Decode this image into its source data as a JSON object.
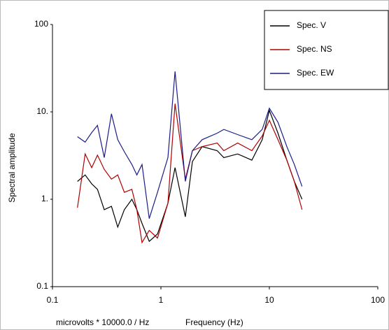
{
  "chart_data": {
    "type": "line",
    "y_label": "Spectral amplitude",
    "x_label": "Frequency (Hz)",
    "units_note": "microvolts * 10000.0 / Hz",
    "xscale": "log",
    "yscale": "log",
    "xlim": [
      0.1,
      100
    ],
    "ylim": [
      0.1,
      100
    ],
    "xticks": [
      0.1,
      1,
      10,
      100
    ],
    "yticks": [
      {
        "value": 0.1,
        "label": "0.1"
      },
      {
        "value": 1,
        "label": "1."
      },
      {
        "value": 10,
        "label": "10."
      },
      {
        "value": 100,
        "label": "100"
      }
    ],
    "grid": false,
    "legend": "upper right",
    "x": [
      0.17,
      0.2,
      0.23,
      0.26,
      0.3,
      0.35,
      0.4,
      0.46,
      0.54,
      0.6,
      0.67,
      0.78,
      0.93,
      1.16,
      1.35,
      1.68,
      1.95,
      2.4,
      3.3,
      3.8,
      5.1,
      6.9,
      8.6,
      10,
      12,
      14.5,
      17,
      20
    ],
    "series": [
      {
        "name": "Spec. V",
        "color": "#000000",
        "values": [
          1.6,
          1.9,
          1.5,
          1.3,
          0.76,
          0.83,
          0.48,
          0.76,
          1.0,
          0.76,
          0.53,
          0.33,
          0.4,
          0.9,
          2.3,
          0.63,
          2.7,
          4,
          3.6,
          3,
          3.3,
          2.8,
          4.8,
          10.4,
          5.7,
          2.8,
          1.6,
          1
        ]
      },
      {
        "name": "Spec. NS",
        "color": "#b00000",
        "values": [
          0.8,
          3.3,
          2.3,
          3.2,
          2.2,
          1.7,
          1.9,
          1.2,
          1.3,
          0.76,
          0.32,
          0.44,
          0.36,
          0.9,
          12.4,
          1.7,
          3.6,
          4,
          4.4,
          3.6,
          4.4,
          3.6,
          5.3,
          8,
          4.8,
          2.8,
          1.6,
          0.76
        ]
      },
      {
        "name": "Spec. EW",
        "color": "#1c1c8a",
        "values": [
          5.2,
          4.5,
          5.8,
          7.0,
          3.0,
          9.5,
          4.8,
          3.5,
          2.5,
          1.9,
          2.5,
          0.6,
          1.2,
          3.0,
          29,
          1.6,
          3.6,
          4.8,
          5.7,
          6.3,
          5.5,
          4.8,
          6.3,
          11,
          7.6,
          4,
          2.5,
          1.4
        ]
      }
    ]
  }
}
